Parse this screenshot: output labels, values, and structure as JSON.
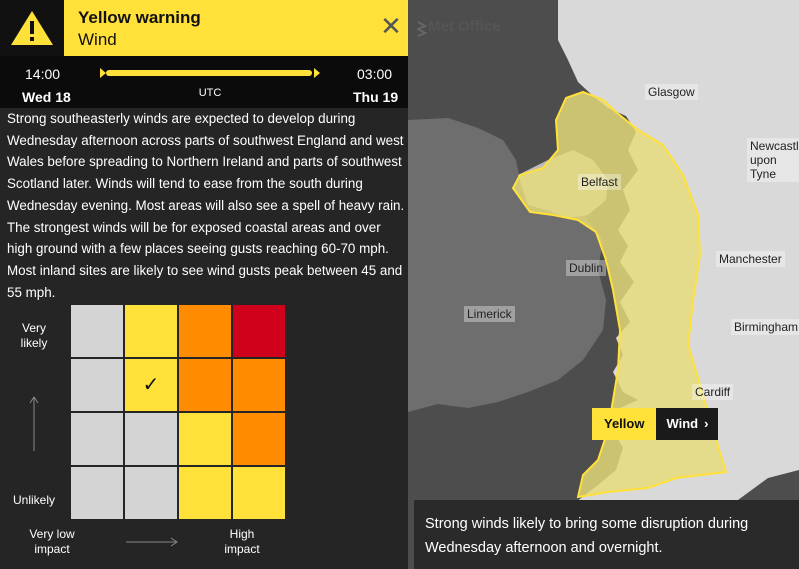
{
  "header": {
    "title": "Yellow warning",
    "subtitle": "Wind",
    "warning_icon": "warning-triangle-icon",
    "close_icon": "close-icon",
    "close_glyph": "✕"
  },
  "timeline": {
    "start_time": "14:00",
    "start_day": "Wed 18",
    "end_time": "03:00",
    "end_day": "Thu 19",
    "timezone": "UTC"
  },
  "description": "Strong southeasterly winds are expected to develop during Wednesday afternoon across parts of southwest England and west Wales before spreading to Northern Ireland and parts of southwest Scotland later. Winds will tend to ease from the south during Wednesday evening. Most areas will also see a spell of heavy rain. The strongest winds will be for exposed coastal areas and over high ground with a few places seeing gusts reaching 60-70 mph. Most inland sites are likely to see wind gusts peak between 45 and 55 mph.",
  "matrix": {
    "likely_label": "Very likely",
    "unlikely_label": "Unlikely",
    "low_impact_label": "Very low impact",
    "high_impact_label": "High impact",
    "check_glyph": "✓",
    "selected": {
      "likelihood_row": 2,
      "impact_col": 2
    },
    "colors": {
      "grey": "#d4d4d4",
      "yellow": "#ffe13a",
      "amber": "#ff8c00",
      "red": "#d0021b"
    },
    "rows": [
      [
        "grey",
        "yellow",
        "amber",
        "red"
      ],
      [
        "grey",
        "yellow",
        "amber",
        "amber"
      ],
      [
        "grey",
        "grey",
        "yellow",
        "amber"
      ],
      [
        "grey",
        "grey",
        "yellow",
        "yellow"
      ]
    ]
  },
  "map": {
    "logo": "Met Office",
    "cities": [
      "Glasgow",
      "Newcastle upon Tyne",
      "Belfast",
      "Dublin",
      "Manchester",
      "Limerick",
      "Birmingham",
      "Cardiff"
    ],
    "badge_level": "Yellow",
    "badge_type": "Wind",
    "caption": "Strong winds likely to bring some disruption during Wednesday afternoon and overnight.",
    "colors": {
      "sea": "#4d4d4d",
      "land": "#d9d9d9",
      "warning_fill": "#e6dc7a",
      "warning_stroke": "#ffe13a"
    }
  }
}
